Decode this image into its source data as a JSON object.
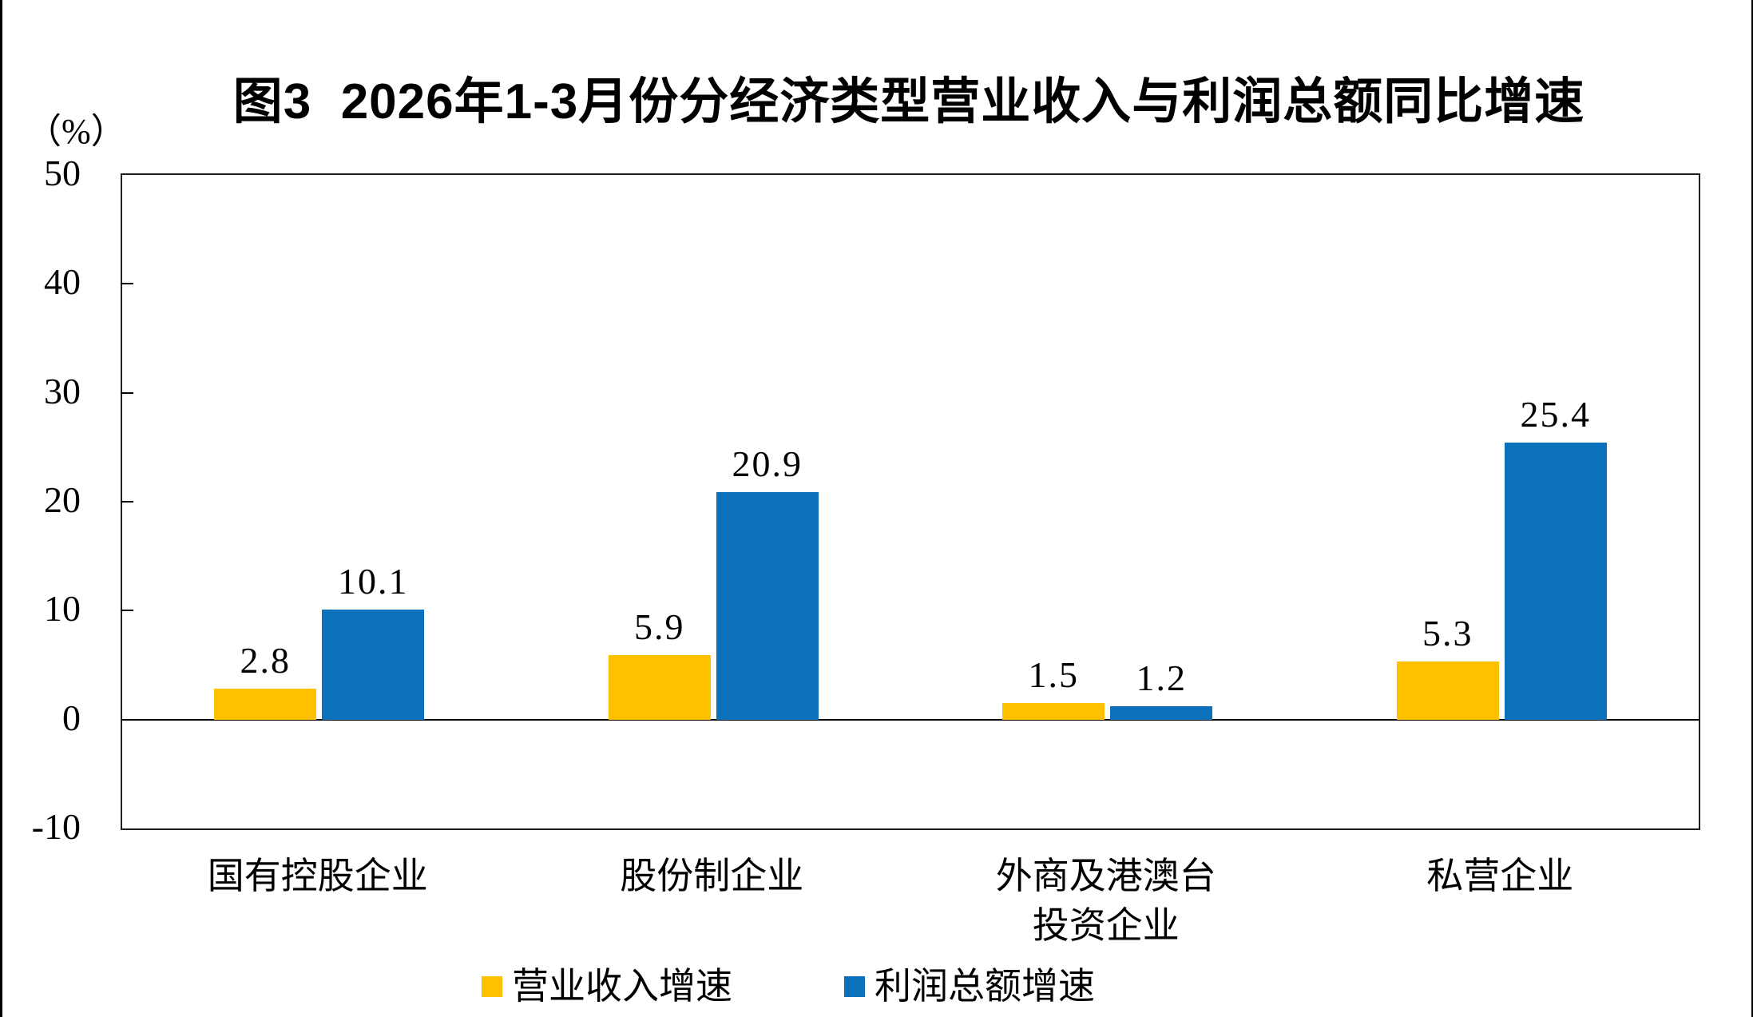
{
  "title": "图3  2026年1-3月份分经济类型营业收入与利润总额同比增速",
  "y_axis": {
    "unit_label": "（%）",
    "tick_values": [
      50,
      40,
      30,
      20,
      10,
      0,
      -10
    ],
    "min": -10,
    "max": 50
  },
  "legend": {
    "items": [
      {
        "label": "营业收入增速",
        "color": "#FFC000"
      },
      {
        "label": "利润总额增速",
        "color": "#0C70BC"
      }
    ]
  },
  "chart_data": {
    "type": "bar",
    "title": "图3 2026年1-3月份分经济类型营业收入与利润总额同比增速",
    "categories": [
      "国有控股企业",
      "股份制企业",
      "外商及港澳台\n投资企业",
      "私营企业"
    ],
    "series": [
      {
        "name": "营业收入增速",
        "color": "#FFC000",
        "values": [
          2.8,
          5.9,
          1.5,
          5.3
        ]
      },
      {
        "name": "利润总额增速",
        "color": "#0C70BC",
        "values": [
          10.1,
          20.9,
          1.2,
          25.4
        ]
      }
    ],
    "data_labels": [
      [
        "2.8",
        "5.9",
        "1.5",
        "5.3"
      ],
      [
        "10.1",
        "20.9",
        "1.2",
        "25.4"
      ]
    ],
    "ylabel": "（%）",
    "ylim": [
      -10,
      50
    ],
    "grid": false,
    "zero_baseline": true,
    "legend_position": "bottom"
  }
}
